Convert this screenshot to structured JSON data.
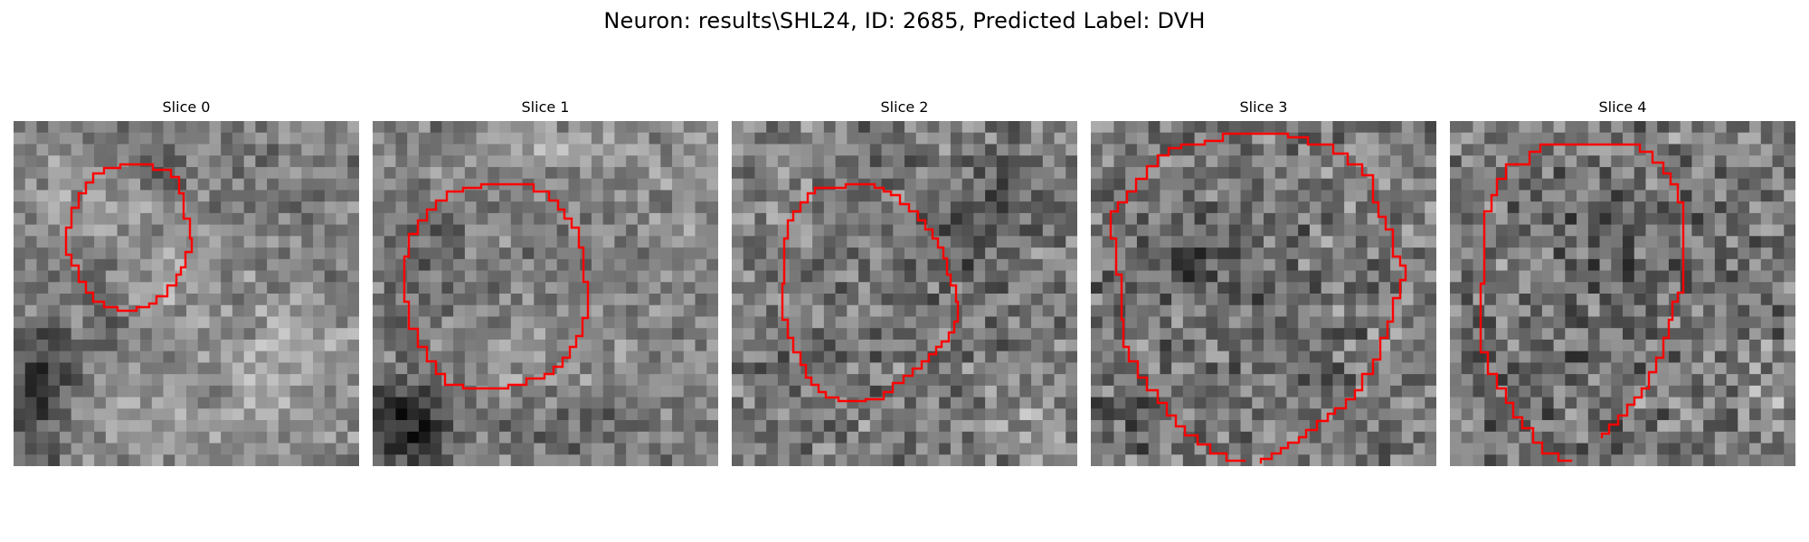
{
  "figure": {
    "title": "Neuron: results\\SHL24, ID: 2685, Predicted Label: DVH"
  },
  "slices": [
    {
      "title": "Slice 0"
    },
    {
      "title": "Slice 1"
    },
    {
      "title": "Slice 2"
    },
    {
      "title": "Slice 3"
    },
    {
      "title": "Slice 4"
    }
  ],
  "colors": {
    "contour": "#ff0000",
    "background": "#ffffff"
  }
}
